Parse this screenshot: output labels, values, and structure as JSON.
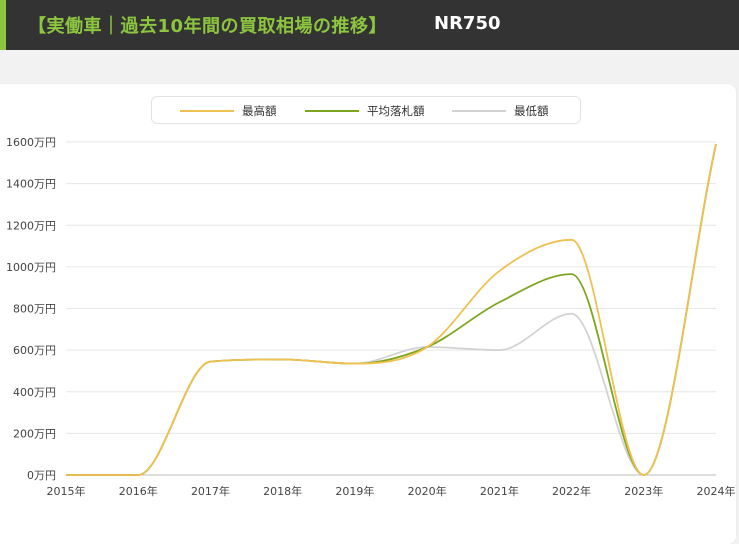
{
  "header": {
    "title": "【実働車｜過去10年間の買取相場の推移】",
    "model": "NR750"
  },
  "colors": {
    "header_bg": "#333333",
    "accent": "#8cc63f",
    "max_line": "#f0c050",
    "avg_line": "#7da51e",
    "min_line": "#d3d3d3"
  },
  "chart_data": {
    "type": "line",
    "x": [
      "2015年",
      "2016年",
      "2017年",
      "2018年",
      "2019年",
      "2020年",
      "2021年",
      "2022年",
      "2023年",
      "2024年"
    ],
    "yticks": [
      "0万円",
      "200万円",
      "400万円",
      "600万円",
      "800万円",
      "1000万円",
      "1200万円",
      "1400万円",
      "1600万円"
    ],
    "ylim": [
      0,
      1600
    ],
    "grid": true,
    "legend_position": "top-center",
    "series": [
      {
        "name": "最高額",
        "color": "#f0c050",
        "points": [
          [
            0,
            0
          ],
          [
            1,
            0
          ],
          [
            2,
            545
          ],
          [
            3,
            555
          ],
          [
            4,
            535
          ],
          [
            5,
            615
          ],
          [
            6,
            980
          ],
          [
            7,
            1130
          ],
          [
            8,
            0
          ],
          [
            9,
            1590
          ]
        ]
      },
      {
        "name": "平均落札額",
        "color": "#7da51e",
        "points": [
          [
            0,
            0
          ],
          [
            1,
            0
          ],
          [
            2,
            545
          ],
          [
            3,
            555
          ],
          [
            4,
            535
          ],
          [
            5,
            615
          ],
          [
            6,
            830
          ],
          [
            7,
            965
          ],
          [
            8,
            0
          ],
          [
            9,
            1590
          ]
        ]
      },
      {
        "name": "最低額",
        "color": "#d3d3d3",
        "points": [
          [
            0,
            0
          ],
          [
            1,
            0
          ],
          [
            2,
            545
          ],
          [
            3,
            555
          ],
          [
            4,
            535
          ],
          [
            5,
            615
          ],
          [
            6,
            600
          ],
          [
            7,
            775
          ],
          [
            8,
            0
          ],
          [
            9,
            1590
          ]
        ]
      }
    ]
  }
}
